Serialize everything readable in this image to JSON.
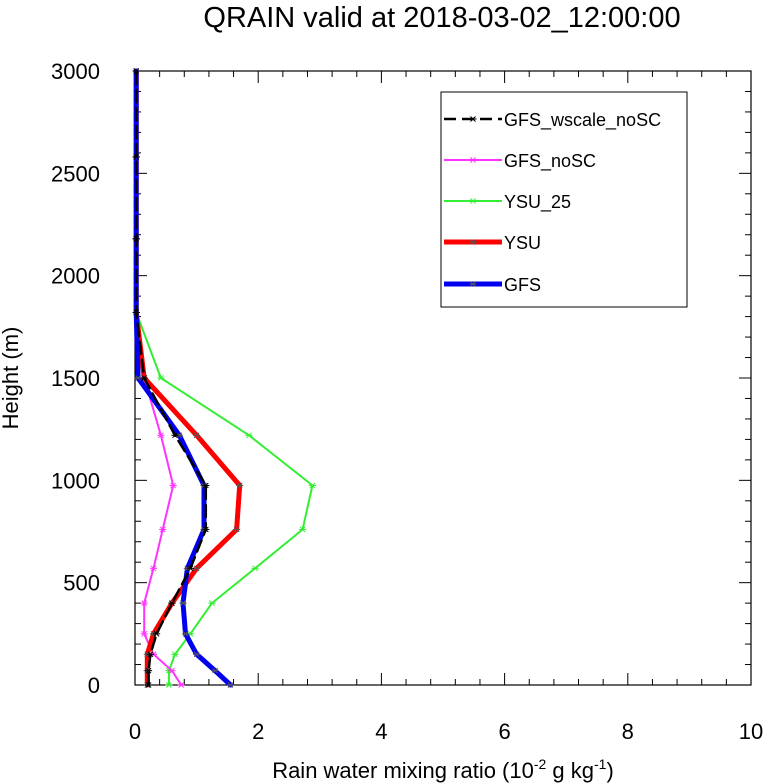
{
  "chart_data": {
    "type": "line",
    "title": "QRAIN valid at 2018-03-02_12:00:00",
    "xlabel": {
      "main": "Rain water mixing ratio (10",
      "sup1": "-2",
      "mid": " g kg",
      "sup2": "-1",
      "end": ")"
    },
    "ylabel": "Height (m)",
    "xlim": [
      0,
      10
    ],
    "ylim": [
      0,
      3000
    ],
    "xticks": [
      "0",
      "2",
      "4",
      "6",
      "8",
      "10"
    ],
    "yticks": [
      "0",
      "500",
      "1000",
      "1500",
      "2000",
      "2500",
      "3000"
    ],
    "xtick_values": [
      0,
      2,
      4,
      6,
      8,
      10
    ],
    "ytick_values": [
      0,
      500,
      1000,
      1500,
      2000,
      2500,
      3000
    ],
    "legend_position": "top-right",
    "grid": false,
    "series": [
      {
        "name": "GFS_wscale_noSC",
        "color": "#000000",
        "dash": true,
        "width": 2.5,
        "points": [
          [
            0.22,
            0
          ],
          [
            0.22,
            70
          ],
          [
            0.25,
            150
          ],
          [
            0.35,
            250
          ],
          [
            0.6,
            400
          ],
          [
            0.9,
            570
          ],
          [
            1.15,
            760
          ],
          [
            1.15,
            975
          ],
          [
            0.65,
            1220
          ],
          [
            0.15,
            1500
          ],
          [
            0.02,
            1820
          ],
          [
            0.02,
            2180
          ],
          [
            0.02,
            2580
          ],
          [
            0.02,
            3000
          ]
        ]
      },
      {
        "name": "GFS_noSC",
        "color": "#ff33ff",
        "dash": false,
        "width": 2,
        "points": [
          [
            0.75,
            0
          ],
          [
            0.6,
            70
          ],
          [
            0.3,
            150
          ],
          [
            0.15,
            250
          ],
          [
            0.15,
            400
          ],
          [
            0.3,
            570
          ],
          [
            0.45,
            760
          ],
          [
            0.62,
            975
          ],
          [
            0.42,
            1220
          ],
          [
            0.15,
            1500
          ],
          [
            0.02,
            1820
          ],
          [
            0.02,
            2180
          ],
          [
            0.02,
            2580
          ],
          [
            0.02,
            3000
          ]
        ]
      },
      {
        "name": "YSU_25",
        "color": "#33ee33",
        "dash": false,
        "width": 2,
        "points": [
          [
            0.55,
            0
          ],
          [
            0.55,
            70
          ],
          [
            0.65,
            150
          ],
          [
            0.9,
            250
          ],
          [
            1.25,
            400
          ],
          [
            1.95,
            570
          ],
          [
            2.72,
            760
          ],
          [
            2.88,
            975
          ],
          [
            1.85,
            1220
          ],
          [
            0.42,
            1500
          ],
          [
            0.02,
            1820
          ],
          [
            0.02,
            2180
          ],
          [
            0.02,
            2580
          ],
          [
            0.02,
            3000
          ]
        ]
      },
      {
        "name": "YSU",
        "color": "#ff0000",
        "dash": false,
        "width": 5,
        "points": [
          [
            0.2,
            0
          ],
          [
            0.2,
            70
          ],
          [
            0.2,
            150
          ],
          [
            0.3,
            250
          ],
          [
            0.6,
            400
          ],
          [
            1.0,
            570
          ],
          [
            1.65,
            760
          ],
          [
            1.7,
            975
          ],
          [
            1.0,
            1220
          ],
          [
            0.15,
            1500
          ],
          [
            0.02,
            1820
          ],
          [
            0.02,
            2180
          ],
          [
            0.02,
            2580
          ],
          [
            0.02,
            3000
          ]
        ]
      },
      {
        "name": "GFS",
        "color": "#0000ee",
        "dash": false,
        "width": 5,
        "points": [
          [
            1.55,
            0
          ],
          [
            1.3,
            70
          ],
          [
            1.0,
            150
          ],
          [
            0.82,
            250
          ],
          [
            0.78,
            400
          ],
          [
            0.85,
            570
          ],
          [
            1.12,
            760
          ],
          [
            1.12,
            975
          ],
          [
            0.72,
            1220
          ],
          [
            0.05,
            1500
          ],
          [
            0.02,
            1820
          ],
          [
            0.02,
            2180
          ],
          [
            0.02,
            2580
          ],
          [
            0.02,
            3000
          ]
        ]
      }
    ]
  }
}
